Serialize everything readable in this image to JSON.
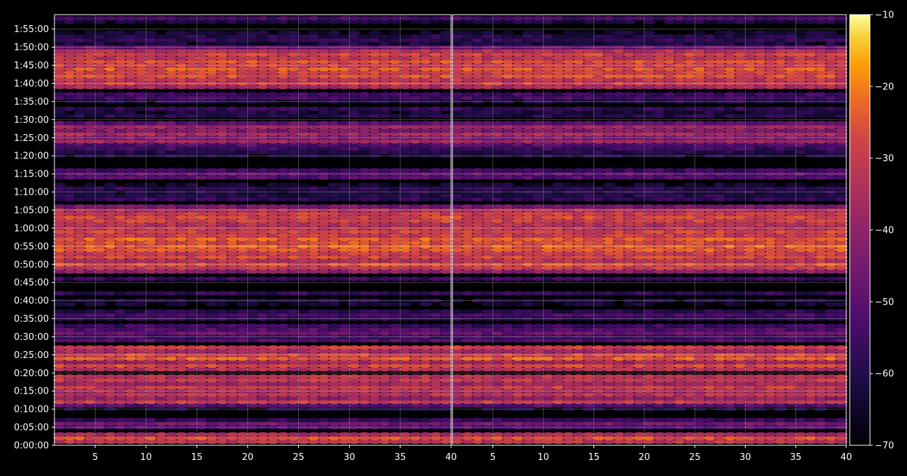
{
  "chart_data": {
    "type": "heatmap",
    "title": "",
    "xlabel": "",
    "ylabel": "",
    "panels": [
      {
        "name": "",
        "xlim": [
          1,
          40
        ],
        "xticks": [
          5,
          10,
          15,
          20,
          25,
          30,
          35,
          40
        ]
      },
      {
        "name": "",
        "xlim": [
          1,
          40
        ],
        "xticks": [
          5,
          10,
          15,
          20,
          25,
          30,
          35,
          40
        ]
      }
    ],
    "y_ticks": [
      "0:00:00",
      "0:05:00",
      "0:10:00",
      "0:15:00",
      "0:20:00",
      "0:25:00",
      "0:30:00",
      "0:35:00",
      "0:40:00",
      "0:45:00",
      "0:50:00",
      "0:55:00",
      "1:00:00",
      "1:05:00",
      "1:10:00",
      "1:15:00",
      "1:20:00",
      "1:25:00",
      "1:30:00",
      "1:35:00",
      "1:40:00",
      "1:45:00",
      "1:50:00",
      "1:55:00"
    ],
    "y_tick_seconds": [
      0,
      300,
      600,
      900,
      1200,
      1500,
      1800,
      2100,
      2400,
      2700,
      3000,
      3300,
      3600,
      3900,
      4200,
      4500,
      4800,
      5100,
      5400,
      5700,
      6000,
      6300,
      6600,
      6900
    ],
    "ylim_seconds": [
      0,
      7140
    ],
    "grid": true,
    "colorbar": {
      "colormap": "inferno",
      "range": [
        -70,
        -10
      ],
      "ticks": [
        -10,
        -20,
        -30,
        -40,
        -50,
        -60,
        -70
      ],
      "tick_labels": [
        "−10",
        "−20",
        "−30",
        "−40",
        "−50",
        "−60",
        "−70"
      ]
    },
    "row_interval_seconds": 60,
    "row_levels_db": [
      {
        "t": 60,
        "db": -32
      },
      {
        "t": 120,
        "db": -26
      },
      {
        "t": 180,
        "db": -36
      },
      {
        "t": 300,
        "db": -52
      },
      {
        "t": 360,
        "db": -46
      },
      {
        "t": 420,
        "db": -58
      },
      {
        "t": 600,
        "db": -64
      },
      {
        "t": 660,
        "db": -52
      },
      {
        "t": 720,
        "db": -30
      },
      {
        "t": 780,
        "db": -40
      },
      {
        "t": 840,
        "db": -32
      },
      {
        "t": 900,
        "db": -36
      },
      {
        "t": 960,
        "db": -30
      },
      {
        "t": 1020,
        "db": -38
      },
      {
        "t": 1080,
        "db": -31
      },
      {
        "t": 1140,
        "db": -33
      },
      {
        "t": 1260,
        "db": -34
      },
      {
        "t": 1320,
        "db": -28
      },
      {
        "t": 1380,
        "db": -38
      },
      {
        "t": 1440,
        "db": -24
      },
      {
        "t": 1500,
        "db": -28
      },
      {
        "t": 1560,
        "db": -37
      },
      {
        "t": 1620,
        "db": -30
      },
      {
        "t": 1740,
        "db": -52
      },
      {
        "t": 1800,
        "db": -56
      },
      {
        "t": 1860,
        "db": -48
      },
      {
        "t": 1920,
        "db": -52
      },
      {
        "t": 1980,
        "db": -56
      },
      {
        "t": 2100,
        "db": -58
      },
      {
        "t": 2160,
        "db": -54
      },
      {
        "t": 2220,
        "db": -60
      },
      {
        "t": 2340,
        "db": -64
      },
      {
        "t": 2400,
        "db": -62
      },
      {
        "t": 2520,
        "db": -58
      },
      {
        "t": 2760,
        "db": -56
      },
      {
        "t": 2880,
        "db": -42
      },
      {
        "t": 2940,
        "db": -30
      },
      {
        "t": 3000,
        "db": -26
      },
      {
        "t": 3060,
        "db": -34
      },
      {
        "t": 3120,
        "db": -28
      },
      {
        "t": 3180,
        "db": -30
      },
      {
        "t": 3240,
        "db": -25
      },
      {
        "t": 3300,
        "db": -24
      },
      {
        "t": 3360,
        "db": -27
      },
      {
        "t": 3420,
        "db": -24
      },
      {
        "t": 3480,
        "db": -30
      },
      {
        "t": 3540,
        "db": -28
      },
      {
        "t": 3600,
        "db": -32
      },
      {
        "t": 3660,
        "db": -34
      },
      {
        "t": 3720,
        "db": -29
      },
      {
        "t": 3780,
        "db": -28
      },
      {
        "t": 3840,
        "db": -30
      },
      {
        "t": 3900,
        "db": -34
      },
      {
        "t": 3960,
        "db": -46
      },
      {
        "t": 4080,
        "db": -58
      },
      {
        "t": 4140,
        "db": -60
      },
      {
        "t": 4200,
        "db": -62
      },
      {
        "t": 4260,
        "db": -58
      },
      {
        "t": 4320,
        "db": -64
      },
      {
        "t": 4440,
        "db": -52
      },
      {
        "t": 4500,
        "db": -50
      },
      {
        "t": 4560,
        "db": -56
      },
      {
        "t": 4800,
        "db": -62
      },
      {
        "t": 4860,
        "db": -60
      },
      {
        "t": 4920,
        "db": -56
      },
      {
        "t": 4980,
        "db": -52
      },
      {
        "t": 5040,
        "db": -38
      },
      {
        "t": 5100,
        "db": -44
      },
      {
        "t": 5160,
        "db": -36
      },
      {
        "t": 5220,
        "db": -44
      },
      {
        "t": 5280,
        "db": -38
      },
      {
        "t": 5340,
        "db": -50
      },
      {
        "t": 5460,
        "db": -60
      },
      {
        "t": 5520,
        "db": -62
      },
      {
        "t": 5580,
        "db": -58
      },
      {
        "t": 5700,
        "db": -62
      },
      {
        "t": 5760,
        "db": -54
      },
      {
        "t": 5820,
        "db": -56
      },
      {
        "t": 5940,
        "db": -36
      },
      {
        "t": 6000,
        "db": -30
      },
      {
        "t": 6060,
        "db": -32
      },
      {
        "t": 6120,
        "db": -26
      },
      {
        "t": 6180,
        "db": -28
      },
      {
        "t": 6240,
        "db": -25
      },
      {
        "t": 6300,
        "db": -30
      },
      {
        "t": 6360,
        "db": -26
      },
      {
        "t": 6420,
        "db": -32
      },
      {
        "t": 6480,
        "db": -29
      },
      {
        "t": 6540,
        "db": -34
      },
      {
        "t": 6600,
        "db": -48
      },
      {
        "t": 6660,
        "db": -62
      },
      {
        "t": 6720,
        "db": -58
      },
      {
        "t": 6780,
        "db": -60
      },
      {
        "t": 6840,
        "db": -64
      },
      {
        "t": 7020,
        "db": -62
      },
      {
        "t": 7080,
        "db": -54
      }
    ]
  }
}
